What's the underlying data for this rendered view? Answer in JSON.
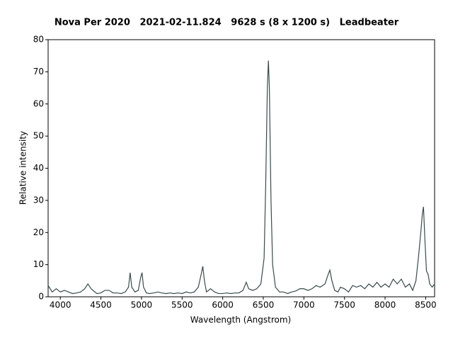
{
  "chart_data": {
    "type": "line",
    "title": "Nova Per 2020   2021-02-11.824   9628 s (8 x 1200 s)   Leadbeater",
    "xlabel": "Wavelength (Angstrom)",
    "ylabel": "Relative intensity",
    "xlim": [
      3850,
      8610
    ],
    "ylim": [
      0,
      80
    ],
    "xticks": [
      4000,
      4500,
      5000,
      5500,
      6000,
      6500,
      7000,
      7500,
      8000,
      8500
    ],
    "yticks": [
      0,
      10,
      20,
      30,
      40,
      50,
      60,
      70,
      80
    ],
    "x": [
      3850,
      3900,
      3950,
      4000,
      4050,
      4100,
      4150,
      4200,
      4250,
      4300,
      4340,
      4380,
      4450,
      4500,
      4550,
      4600,
      4650,
      4700,
      4750,
      4800,
      4840,
      4860,
      4880,
      4920,
      4960,
      4990,
      5007,
      5025,
      5060,
      5100,
      5150,
      5200,
      5250,
      5300,
      5350,
      5400,
      5450,
      5500,
      5550,
      5600,
      5650,
      5700,
      5735,
      5755,
      5775,
      5800,
      5850,
      5900,
      5950,
      6000,
      6050,
      6100,
      6150,
      6200,
      6250,
      6290,
      6320,
      6370,
      6420,
      6470,
      6510,
      6530,
      6550,
      6563,
      6575,
      6595,
      6615,
      6650,
      6700,
      6750,
      6800,
      6850,
      6900,
      6950,
      7000,
      7050,
      7100,
      7150,
      7200,
      7260,
      7300,
      7320,
      7345,
      7380,
      7420,
      7450,
      7500,
      7550,
      7600,
      7650,
      7700,
      7750,
      7800,
      7850,
      7900,
      7950,
      8000,
      8050,
      8100,
      8150,
      8200,
      8250,
      8300,
      8340,
      8380,
      8410,
      8440,
      8460,
      8473,
      8490,
      8510,
      8530,
      8550,
      8580,
      8610
    ],
    "series": [
      {
        "color": "#3b4a4a",
        "values": [
          3.5,
          1.5,
          2.5,
          1.5,
          2,
          1.5,
          1,
          1.2,
          1.5,
          2.5,
          4,
          2.5,
          1,
          1.2,
          2,
          2,
          1.2,
          1.2,
          1,
          1.5,
          3,
          7.5,
          3,
          1.5,
          2,
          6,
          7.5,
          3,
          1.2,
          1,
          1.2,
          1.5,
          1.2,
          1,
          1.2,
          1,
          1.2,
          1,
          1.5,
          1.2,
          1.5,
          3,
          7,
          9.5,
          5,
          1.5,
          2.5,
          1.5,
          1,
          1,
          1.2,
          1,
          1.2,
          1.2,
          2,
          4.5,
          2.5,
          2,
          2.5,
          4,
          12,
          35,
          65,
          73.5,
          65,
          30,
          10,
          3,
          1.5,
          1.5,
          1,
          1.5,
          1.8,
          2.5,
          2.5,
          2,
          2.5,
          3.5,
          3,
          4,
          7,
          8.3,
          5,
          2,
          1.5,
          3,
          2.5,
          1.5,
          3.5,
          3,
          3.5,
          2.5,
          4,
          3,
          4.5,
          3,
          4,
          3,
          5.5,
          4,
          5.5,
          3,
          4,
          2,
          5,
          12,
          20,
          26,
          28,
          18,
          8,
          7,
          4,
          3,
          4
        ]
      }
    ]
  }
}
